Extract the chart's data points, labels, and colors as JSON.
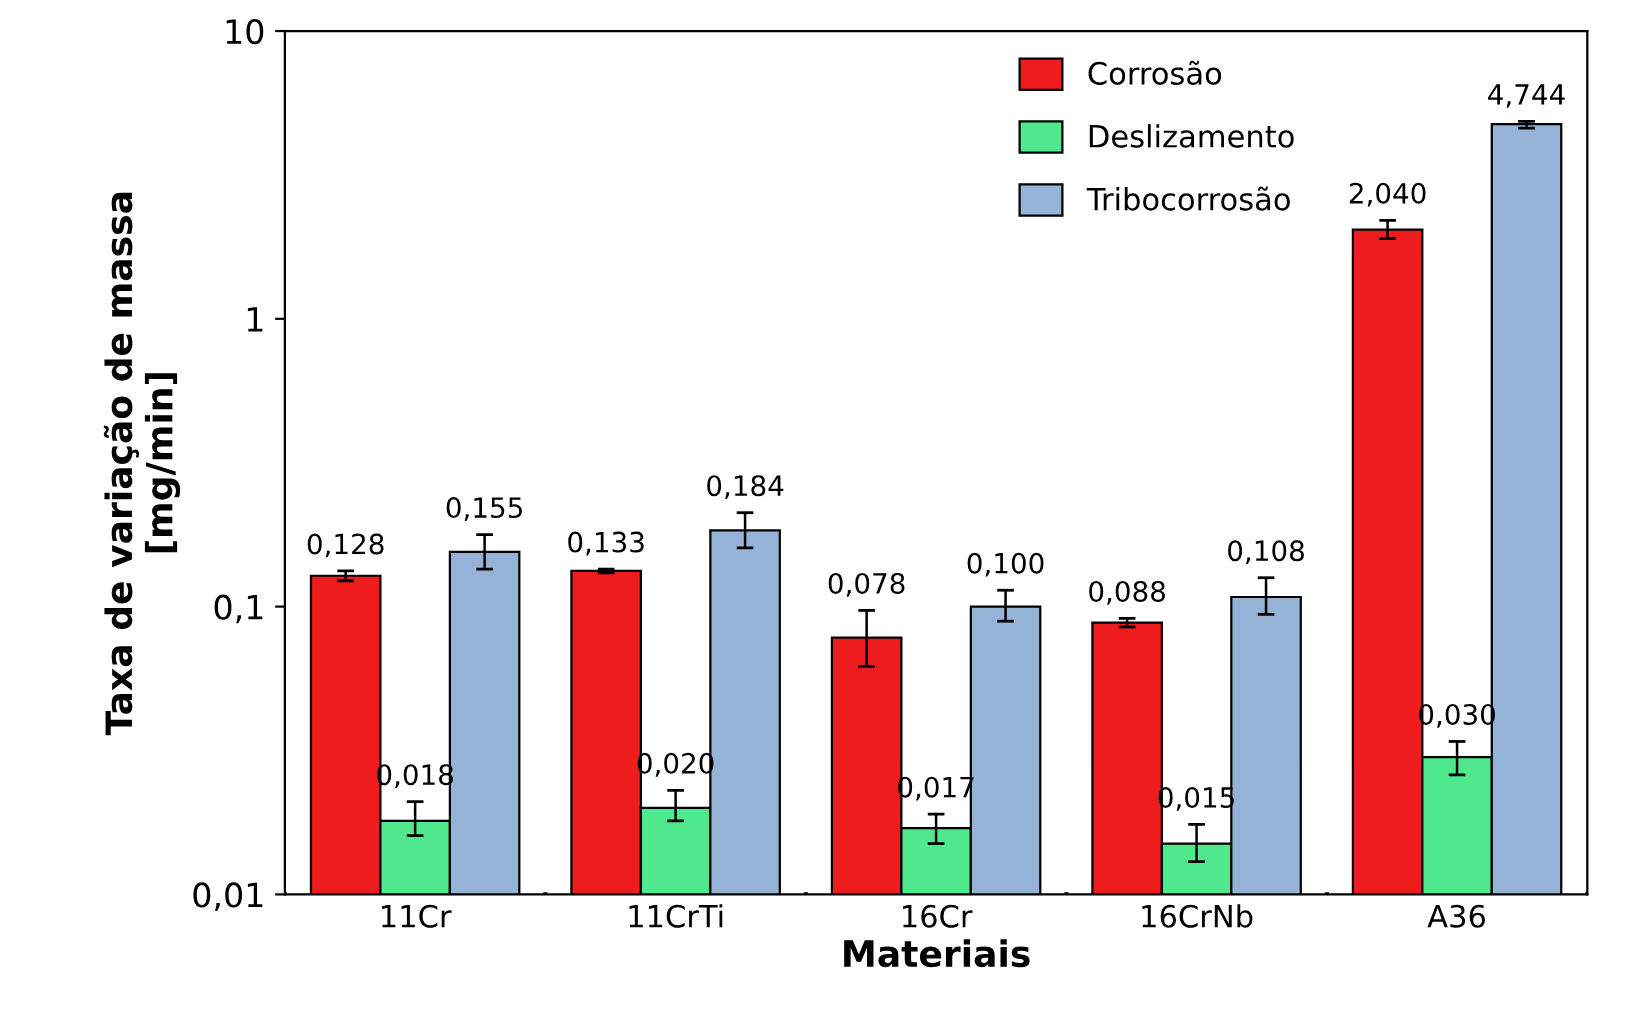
{
  "chart_data": {
    "type": "bar",
    "xlabel": "Materiais",
    "ylabel": "Taxa de variação de massa\n[mg/min]",
    "categories": [
      "11Cr",
      "11CrTi",
      "16Cr",
      "16CrNb",
      "A36"
    ],
    "log": true,
    "ylim": [
      0.01,
      10
    ],
    "yticks": [
      {
        "value": 0.01,
        "label": "0,01"
      },
      {
        "value": 0.1,
        "label": "0,1"
      },
      1,
      10
    ],
    "grid": false,
    "legend": "top",
    "series": [
      {
        "name": "Corrosão",
        "color": "#ee1c1c",
        "values": [
          0.128,
          0.133,
          0.078,
          0.088,
          2.04
        ],
        "value_labels": [
          "0,128",
          "0,133",
          "0,078",
          "0,088",
          "2,040"
        ],
        "errors": [
          [
            0.123,
            0.133
          ],
          [
            0.131,
            0.135
          ],
          [
            0.062,
            0.097
          ],
          [
            0.085,
            0.091
          ],
          [
            1.9,
            2.2
          ]
        ]
      },
      {
        "name": "Deslizamento",
        "color": "#4fe88c",
        "values": [
          0.018,
          0.02,
          0.017,
          0.015,
          0.03
        ],
        "value_labels": [
          "0,018",
          "0,020",
          "0,017",
          "0,015",
          "0,030"
        ],
        "errors": [
          [
            0.016,
            0.021
          ],
          [
            0.018,
            0.023
          ],
          [
            0.015,
            0.019
          ],
          [
            0.013,
            0.0175
          ],
          [
            0.026,
            0.034
          ]
        ]
      },
      {
        "name": "Tribocorrosão",
        "color": "#95b3d7",
        "values": [
          0.155,
          0.184,
          0.1,
          0.108,
          4.744
        ],
        "value_labels": [
          "0,155",
          "0,184",
          "0,100",
          "0,108",
          "4,744"
        ],
        "errors": [
          [
            0.135,
            0.178
          ],
          [
            0.16,
            0.212
          ],
          [
            0.089,
            0.114
          ],
          [
            0.094,
            0.126
          ],
          [
            4.6,
            4.85
          ]
        ]
      }
    ]
  }
}
